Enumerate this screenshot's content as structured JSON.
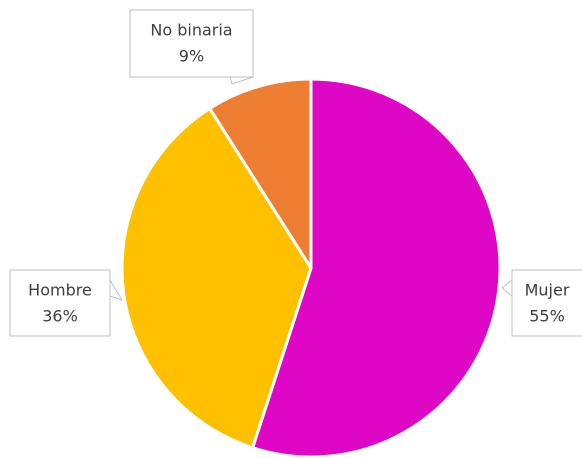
{
  "chart_data": {
    "type": "pie",
    "categories": [
      "Mujer",
      "Hombre",
      "No binaria"
    ],
    "values": [
      55,
      36,
      9
    ],
    "value_labels": [
      "55%",
      "36%",
      "9%"
    ],
    "colors": [
      "#dd07c5",
      "#ffc000",
      "#ed7d31"
    ]
  }
}
